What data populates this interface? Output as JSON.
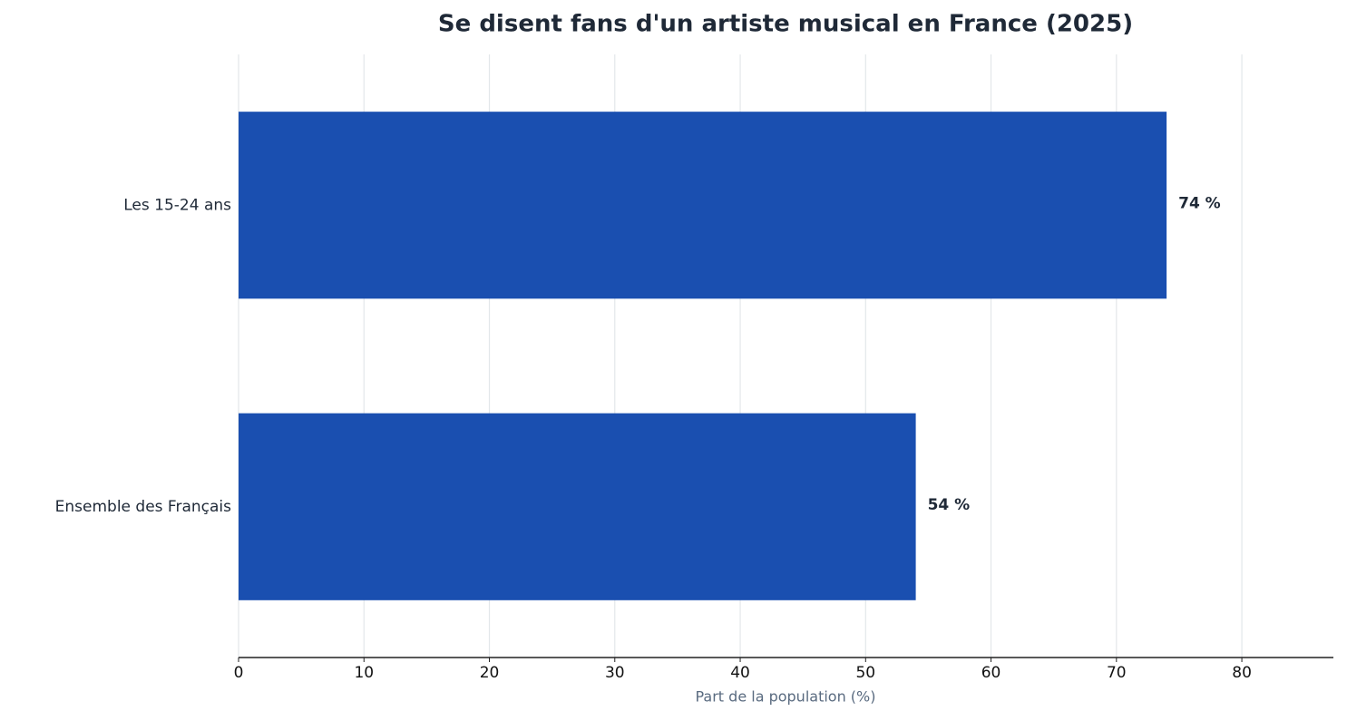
{
  "chart_data": {
    "type": "bar",
    "orientation": "horizontal",
    "title": "Se disent fans d'un artiste musical en France (2025)",
    "xlabel": "Part de la population (%)",
    "categories": [
      "Les 15-24 ans",
      "Ensemble des Français"
    ],
    "values": [
      74,
      54
    ],
    "value_labels": [
      "74 %",
      "54 %"
    ],
    "color": "#1a4fb0",
    "xlim": [
      0,
      87.3
    ],
    "xticks": [
      0,
      10,
      20,
      30,
      40,
      50,
      60,
      70,
      80
    ],
    "grid": true
  }
}
